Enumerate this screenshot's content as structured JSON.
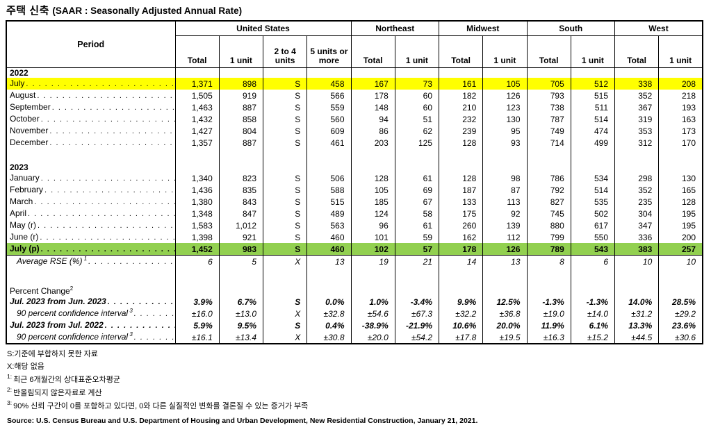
{
  "title": {
    "korean": "주택 신축",
    "english": "(SAAR : Seasonally Adjusted Annual Rate)"
  },
  "colors": {
    "highlight_yellow": "#FFFF00",
    "highlight_green": "#92D050",
    "border": "#000000",
    "text": "#000000"
  },
  "table": {
    "period_header": "Period",
    "groups": [
      {
        "label": "United States",
        "cols": [
          "Total",
          "1 unit",
          "2 to 4 units",
          "5 units or more"
        ]
      },
      {
        "label": "Northeast",
        "cols": [
          "Total",
          "1 unit"
        ]
      },
      {
        "label": "Midwest",
        "cols": [
          "Total",
          "1 unit"
        ]
      },
      {
        "label": "South",
        "cols": [
          "Total",
          "1 unit"
        ]
      },
      {
        "label": "West",
        "cols": [
          "Total",
          "1 unit"
        ]
      }
    ],
    "rows": [
      {
        "type": "section",
        "label": "2022",
        "bold": true
      },
      {
        "type": "data",
        "label": "July",
        "highlight": "yellow",
        "values": [
          "1,371",
          "898",
          "S",
          "458",
          "167",
          "73",
          "161",
          "105",
          "705",
          "512",
          "338",
          "208"
        ]
      },
      {
        "type": "data",
        "label": "August",
        "values": [
          "1,505",
          "919",
          "S",
          "566",
          "178",
          "60",
          "182",
          "126",
          "793",
          "515",
          "352",
          "218"
        ]
      },
      {
        "type": "data",
        "label": "September",
        "values": [
          "1,463",
          "887",
          "S",
          "559",
          "148",
          "60",
          "210",
          "123",
          "738",
          "511",
          "367",
          "193"
        ]
      },
      {
        "type": "data",
        "label": "October",
        "values": [
          "1,432",
          "858",
          "S",
          "560",
          "94",
          "51",
          "232",
          "130",
          "787",
          "514",
          "319",
          "163"
        ]
      },
      {
        "type": "data",
        "label": "November",
        "values": [
          "1,427",
          "804",
          "S",
          "609",
          "86",
          "62",
          "239",
          "95",
          "749",
          "474",
          "353",
          "173"
        ]
      },
      {
        "type": "data",
        "label": "December",
        "values": [
          "1,357",
          "887",
          "S",
          "461",
          "203",
          "125",
          "128",
          "93",
          "714",
          "499",
          "312",
          "170"
        ]
      },
      {
        "type": "spacer",
        "size": "sm"
      },
      {
        "type": "section",
        "label": "2023",
        "bold": true
      },
      {
        "type": "data",
        "label": "January",
        "values": [
          "1,340",
          "823",
          "S",
          "506",
          "128",
          "61",
          "128",
          "98",
          "786",
          "534",
          "298",
          "130"
        ]
      },
      {
        "type": "data",
        "label": "February",
        "values": [
          "1,436",
          "835",
          "S",
          "588",
          "105",
          "69",
          "187",
          "87",
          "792",
          "514",
          "352",
          "165"
        ]
      },
      {
        "type": "data",
        "label": "March",
        "values": [
          "1,380",
          "843",
          "S",
          "515",
          "185",
          "67",
          "133",
          "113",
          "827",
          "535",
          "235",
          "128"
        ]
      },
      {
        "type": "data",
        "label": "April",
        "values": [
          "1,348",
          "847",
          "S",
          "489",
          "124",
          "58",
          "175",
          "92",
          "745",
          "502",
          "304",
          "195"
        ]
      },
      {
        "type": "data",
        "label": "May (r)",
        "values": [
          "1,583",
          "1,012",
          "S",
          "563",
          "96",
          "61",
          "260",
          "139",
          "880",
          "617",
          "347",
          "195"
        ]
      },
      {
        "type": "data",
        "label": "June (r)",
        "values": [
          "1,398",
          "921",
          "S",
          "460",
          "101",
          "59",
          "162",
          "112",
          "799",
          "550",
          "336",
          "200"
        ]
      },
      {
        "type": "data",
        "label": "July (p)",
        "highlight": "green",
        "values": [
          "1,452",
          "983",
          "S",
          "460",
          "102",
          "57",
          "178",
          "126",
          "789",
          "543",
          "383",
          "257"
        ]
      },
      {
        "type": "data",
        "label": "Average RSE (%)",
        "sup": "1",
        "style": "italic",
        "indent": true,
        "values": [
          "6",
          "5",
          "X",
          "13",
          "19",
          "21",
          "14",
          "13",
          "8",
          "6",
          "10",
          "10"
        ]
      },
      {
        "type": "spacer",
        "size": "lg"
      },
      {
        "type": "section",
        "label": "Percent Change",
        "sup": "2",
        "bold": false
      },
      {
        "type": "data",
        "label": "Jul. 2023 from Jun. 2023",
        "style": "bold-italic",
        "values": [
          "3.9%",
          "6.7%",
          "S",
          "0.0%",
          "1.0%",
          "-3.4%",
          "9.9%",
          "12.5%",
          "-1.3%",
          "-1.3%",
          "14.0%",
          "28.5%"
        ]
      },
      {
        "type": "data",
        "label": "90 percent confidence interval",
        "sup": "3",
        "style": "italic",
        "indent": true,
        "values": [
          "±16.0",
          "±13.0",
          "X",
          "±32.8",
          "±54.6",
          "±67.3",
          "±32.2",
          "±36.8",
          "±19.0",
          "±14.0",
          "±31.2",
          "±29.2"
        ]
      },
      {
        "type": "data",
        "label": "Jul. 2023 from Jul. 2022",
        "style": "bold-italic",
        "values": [
          "5.9%",
          "9.5%",
          "S",
          "0.4%",
          "-38.9%",
          "-21.9%",
          "10.6%",
          "20.0%",
          "11.9%",
          "6.1%",
          "13.3%",
          "23.6%"
        ]
      },
      {
        "type": "data",
        "label": "90 percent confidence interval",
        "sup": "3",
        "style": "italic",
        "indent": true,
        "values": [
          "±16.1",
          "±13.4",
          "X",
          "±30.8",
          "±20.0",
          "±54.2",
          "±17.8",
          "±19.5",
          "±16.3",
          "±15.2",
          "±44.5",
          "±30.6"
        ]
      }
    ]
  },
  "footnotes": [
    {
      "marker": "",
      "text": "S:기준에 부합하지 못한 자료"
    },
    {
      "marker": "",
      "text": "X:해당 없음"
    },
    {
      "marker": "1:",
      "text": "최근 6개월간의 상대표준오차평균"
    },
    {
      "marker": "2:",
      "text": "반올림되지 않은자료로 계산"
    },
    {
      "marker": "3:",
      "text": "90% 신뢰 구간이 0를 포함하고 있다면, 0와 다른 실질적인 변화를 결론질 수 있는 증거가 부족"
    }
  ],
  "source": "Source: U.S. Census Bureau and U.S. Department of Housing and Urban Development, New Residential Construction, January 21, 2021."
}
